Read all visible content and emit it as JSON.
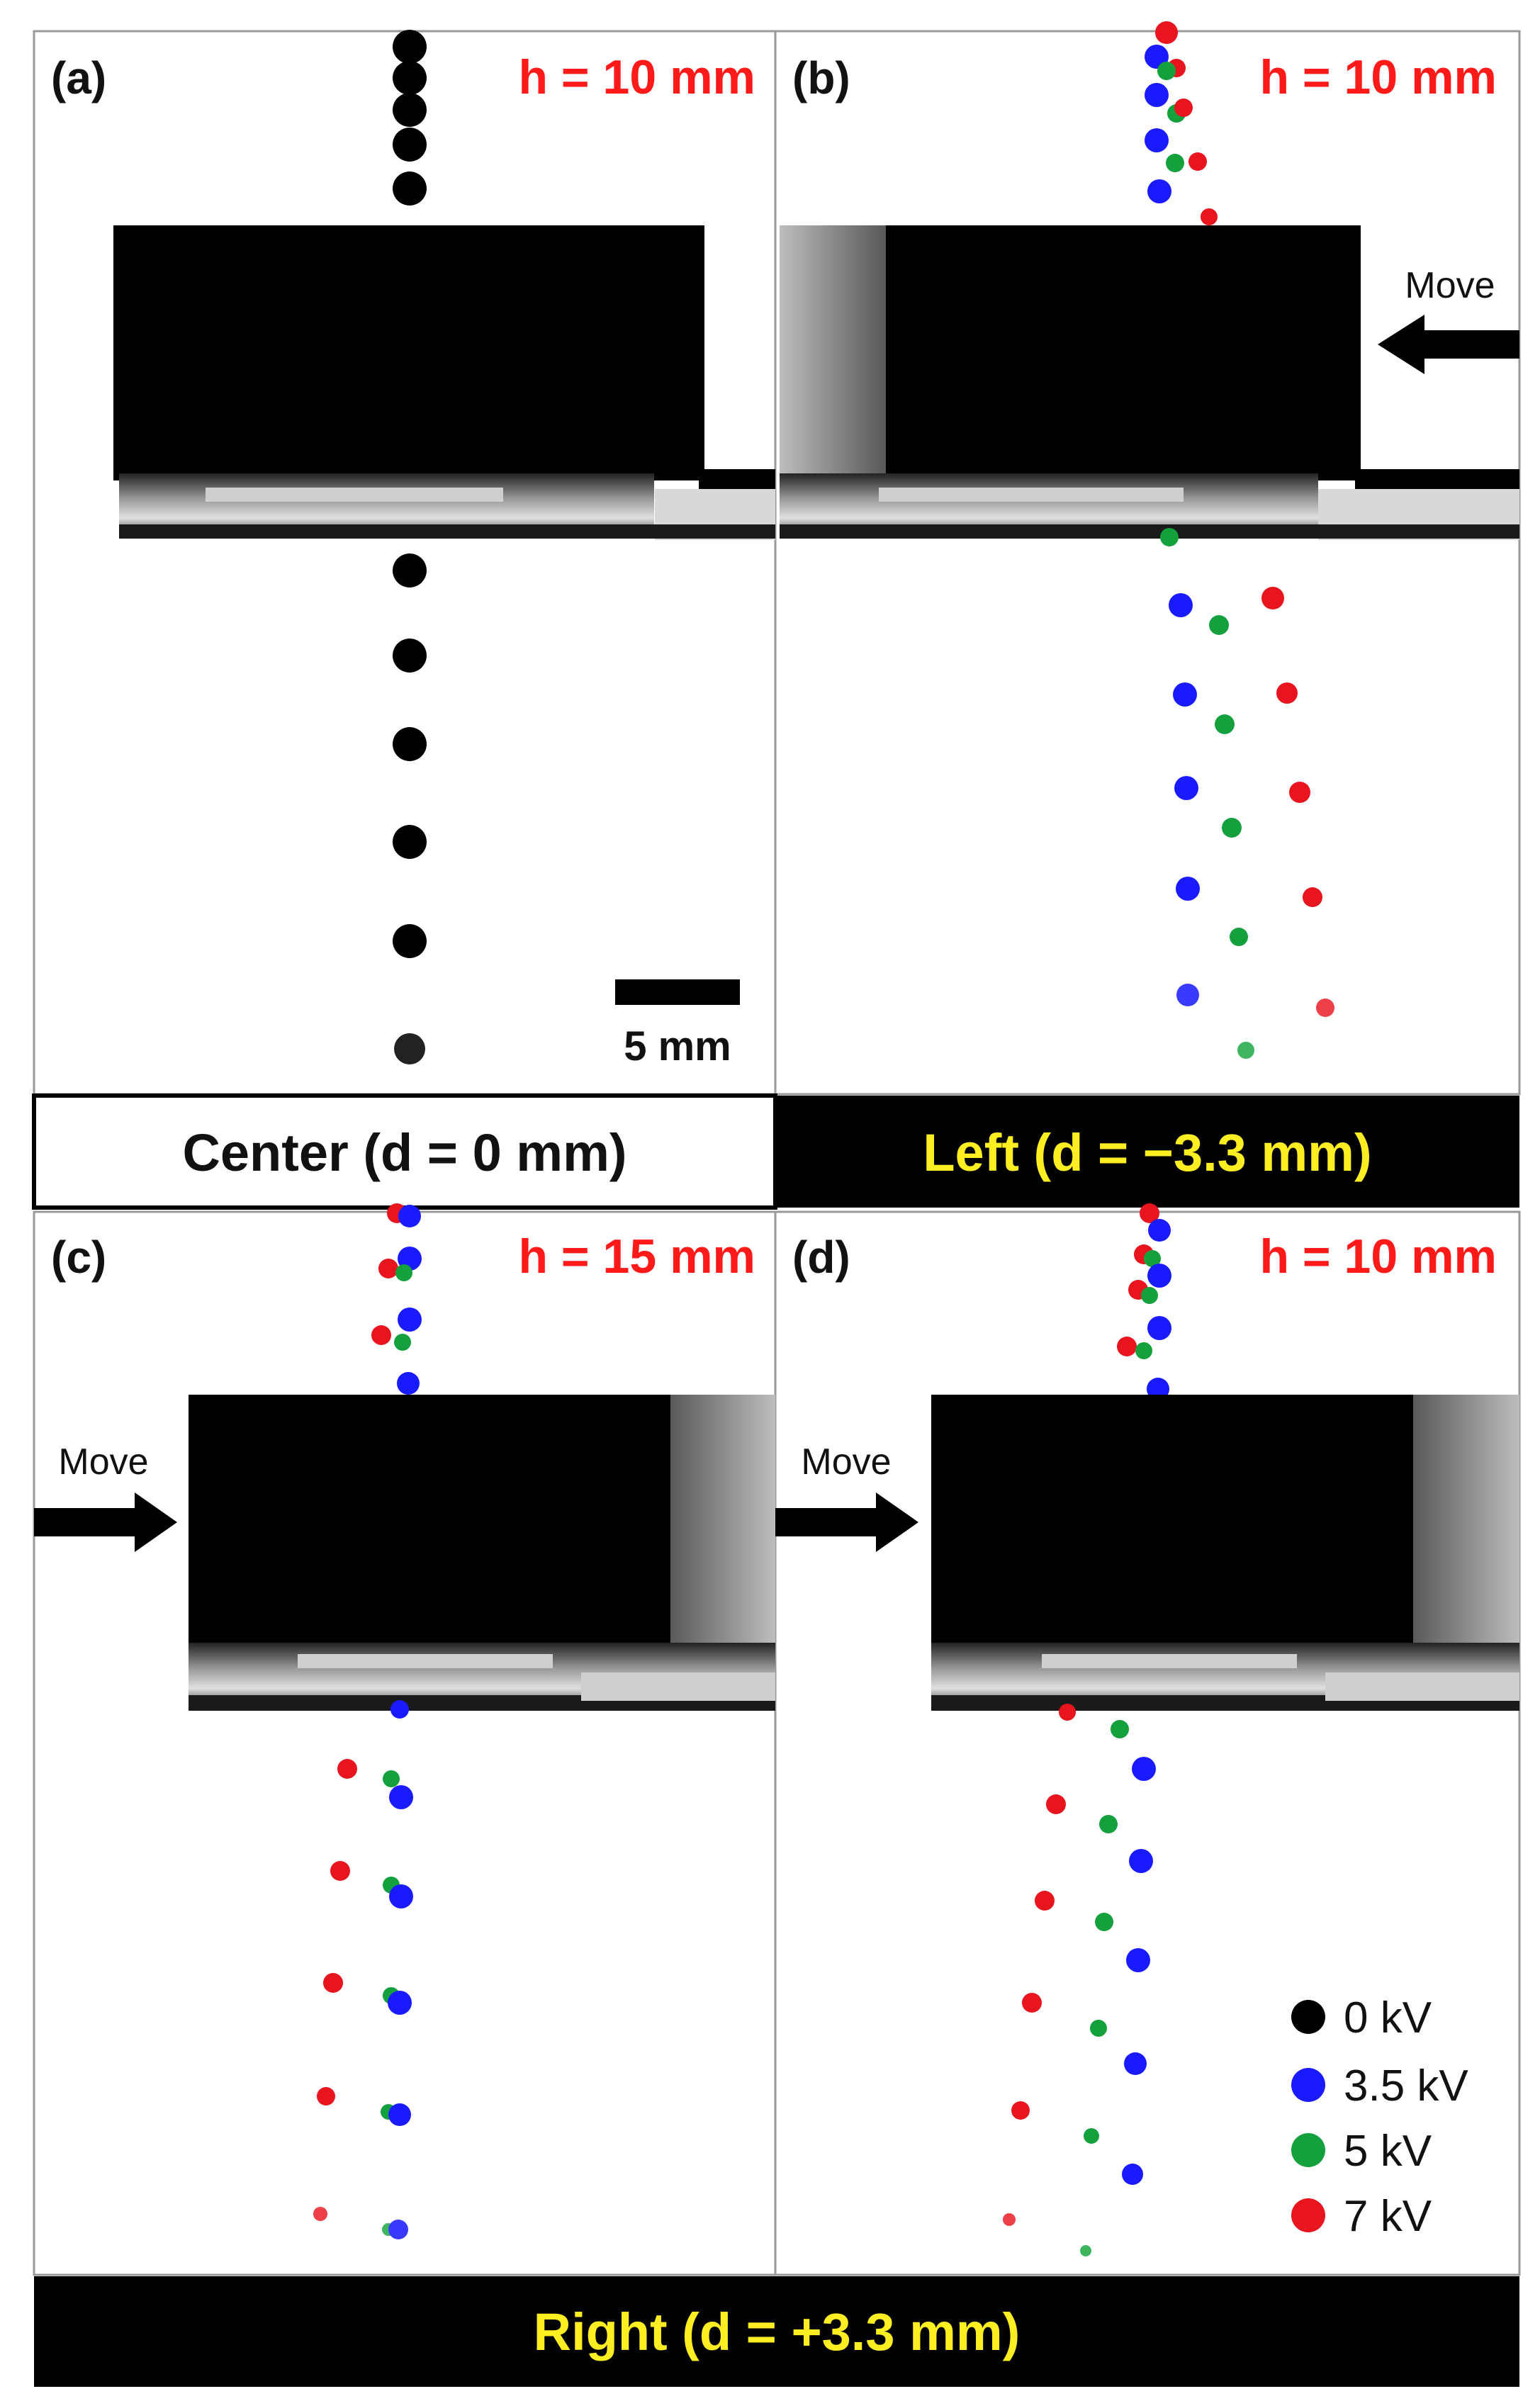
{
  "panels": [
    {
      "id": "a",
      "label": "(a)",
      "h_label": "h = 10 mm"
    },
    {
      "id": "b",
      "label": "(b)",
      "h_label": "h = 10 mm",
      "move_label": "Move"
    },
    {
      "id": "c",
      "label": "(c)",
      "h_label": "h = 15 mm",
      "move_label": "Move"
    },
    {
      "id": "d",
      "label": "(d)",
      "h_label": "h = 10 mm",
      "move_label": "Move"
    }
  ],
  "captions": {
    "center": "Center (d = 0 mm)",
    "left": "Left (d = −3.3 mm)",
    "right": "Right (d = +3.3 mm)"
  },
  "scale_bar": {
    "label": "5 mm"
  },
  "legend": [
    {
      "label": "0 kV",
      "color": "#000000"
    },
    {
      "label": "3.5 kV",
      "color": "#1a1aff"
    },
    {
      "label": "5 kV",
      "color": "#14a03c"
    },
    {
      "label": "7 kV",
      "color": "#e8141e"
    }
  ],
  "colors": {
    "caption_yellow": "#ffee22",
    "h_red": "#ff1a1a"
  }
}
